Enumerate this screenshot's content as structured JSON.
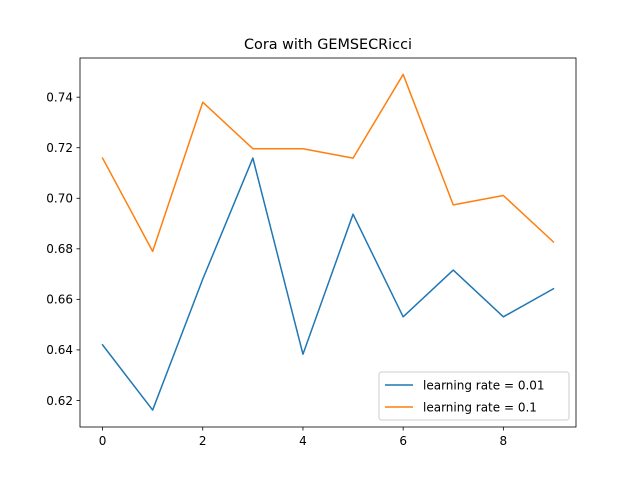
{
  "chart_data": {
    "type": "line",
    "title": "Cora with GEMSECRicci",
    "xlabel": "",
    "ylabel": "",
    "x": [
      0,
      1,
      2,
      3,
      4,
      5,
      6,
      7,
      8,
      9
    ],
    "xlim": [
      -0.45,
      9.45
    ],
    "ylim": [
      0.6095,
      0.7555
    ],
    "xticks": [
      0,
      2,
      4,
      6,
      8
    ],
    "yticks": [
      0.62,
      0.64,
      0.66,
      0.68,
      0.7,
      0.72,
      0.74
    ],
    "ytick_labels": [
      "0.62",
      "0.64",
      "0.66",
      "0.68",
      "0.70",
      "0.72",
      "0.74"
    ],
    "grid": false,
    "legend_position": "lower-right",
    "series": [
      {
        "name": "learning rate = 0.01",
        "color": "#1f77b4",
        "values": [
          0.642,
          0.6162,
          0.668,
          0.7159,
          0.6383,
          0.6937,
          0.6531,
          0.6716,
          0.6531,
          0.6642
        ]
      },
      {
        "name": "learning rate = 0.1",
        "color": "#ff7f0e",
        "values": [
          0.7159,
          0.679,
          0.738,
          0.7196,
          0.7196,
          0.7159,
          0.749,
          0.6974,
          0.7011,
          0.6827
        ]
      }
    ]
  }
}
